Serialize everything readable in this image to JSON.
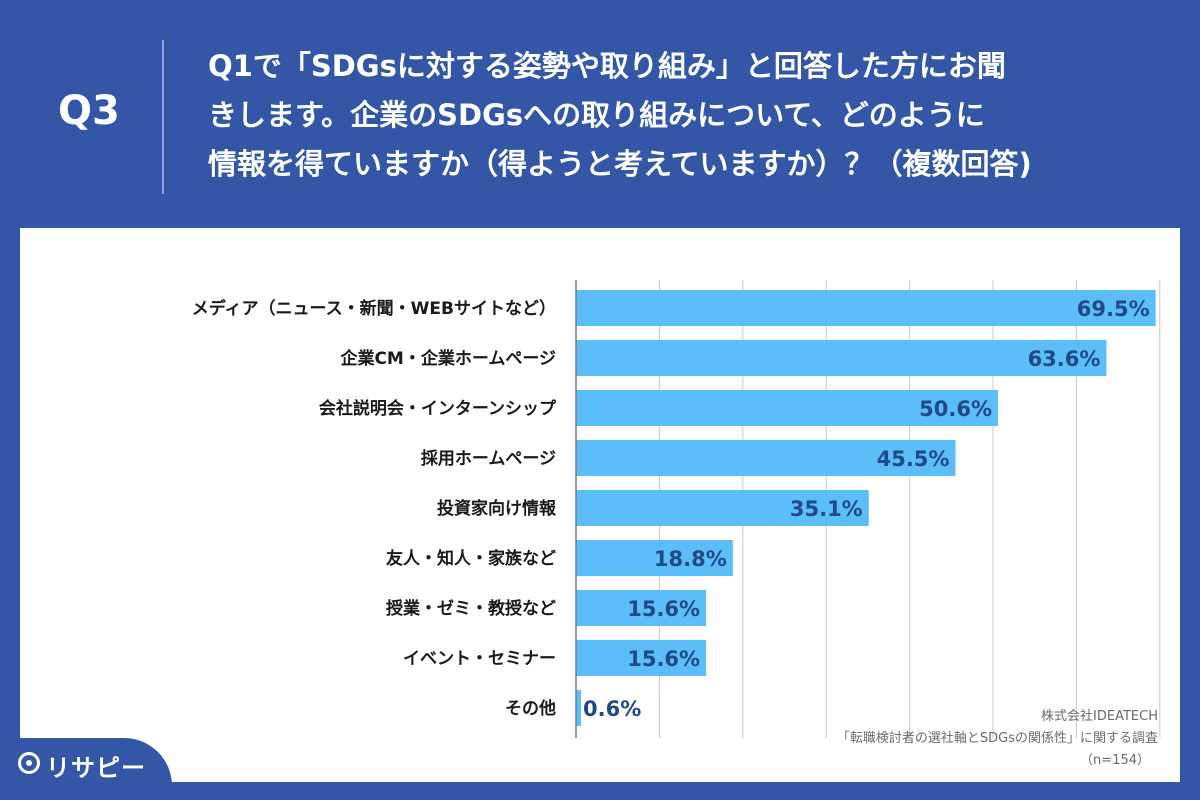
{
  "header": {
    "question_number": "Q3",
    "question_text": "Q1で「SDGsに対する姿勢や取り組み」と回答した方にお聞\nきします。企業のSDGsへの取り組みについて、どのように\n情報を得ていますか（得ようと考えていますか）？（複数回答)"
  },
  "colors": {
    "background": "#3356a6",
    "bar": "#5bbef8",
    "value_label": "#1f4a86",
    "grid": "#c8c8c8"
  },
  "chart_data": {
    "type": "bar",
    "orientation": "horizontal",
    "categories": [
      "メディア（ニュース・新聞・WEBサイトなど）",
      "企業CM・企業ホームページ",
      "会社説明会・インターンシップ",
      "採用ホームページ",
      "投資家向け情報",
      "友人・知人・家族など",
      "授業・ゼミ・教授など",
      "イベント・セミナー",
      "その他"
    ],
    "values": [
      69.5,
      63.6,
      50.6,
      45.5,
      35.1,
      18.8,
      15.6,
      15.6,
      0.6
    ],
    "value_labels": [
      "69.5%",
      "63.6%",
      "50.6%",
      "45.5%",
      "35.1%",
      "18.8%",
      "15.6%",
      "15.6%",
      "0.6%"
    ],
    "xlim": [
      0,
      70
    ],
    "grid": true
  },
  "source": {
    "company": "株式会社IDEATECH",
    "survey": "「転職検討者の選社軸とSDGsの関係性」に関する調査",
    "sample": "（n=154）"
  },
  "logo": {
    "text": "リサピー"
  }
}
